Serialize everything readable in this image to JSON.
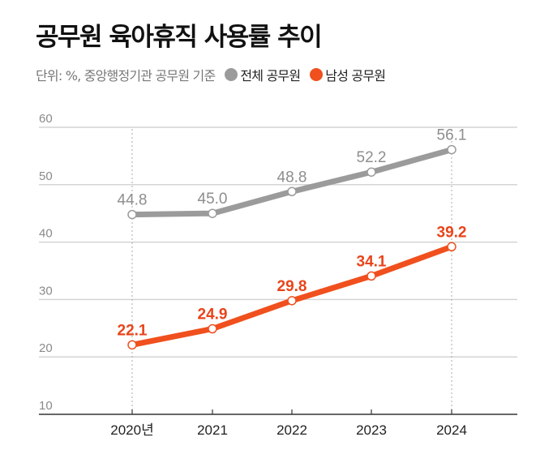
{
  "chart_data": {
    "type": "line",
    "title": "공무원 육아휴직 사용률 추이",
    "subtitle": "단위: %, 중앙행정기관 공무원 기준",
    "categories": [
      "2020년",
      "2021",
      "2022",
      "2023",
      "2024"
    ],
    "series": [
      {
        "name": "전체 공무원",
        "color": "#9b9b9b",
        "label_color": "#8e8e8e",
        "values": [
          44.8,
          45.0,
          48.8,
          52.2,
          56.1
        ],
        "labels": [
          "44.8",
          "45.0",
          "48.8",
          "52.2",
          "56.1"
        ]
      },
      {
        "name": "남성 공무원",
        "color": "#f0501e",
        "label_color": "#e8441a",
        "values": [
          22.1,
          24.9,
          29.8,
          34.1,
          39.2
        ],
        "labels": [
          "22.1",
          "24.9",
          "29.8",
          "34.1",
          "39.2"
        ]
      }
    ],
    "yticks": [
      "10",
      "20",
      "30",
      "40",
      "50",
      "60"
    ],
    "ylim": [
      10,
      60
    ],
    "grid": true,
    "legend": "top"
  }
}
